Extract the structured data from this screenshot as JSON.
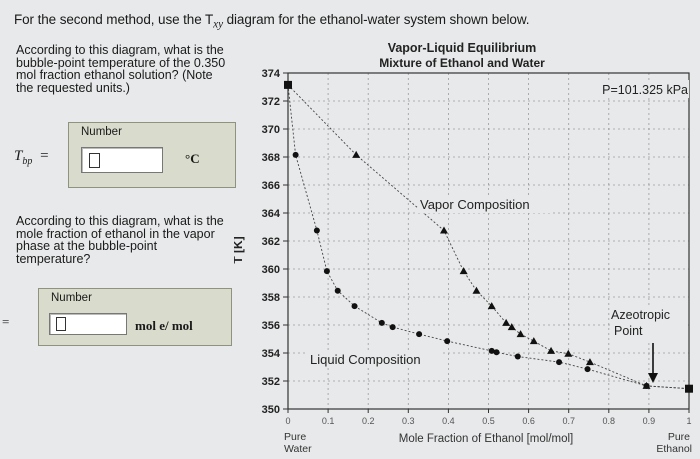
{
  "intro": {
    "pre": "For the second method, use the T",
    "sub": "xy",
    "post": " diagram for the ethanol-water system shown below."
  },
  "question1": {
    "text": "According to this diagram, what is the bubble-point temperature of the 0.350 mol fraction ethanol solution? (Note the requested units.)",
    "panel_label": "Number",
    "variable": "T",
    "variable_sub": "bp",
    "equals": "=",
    "value": "",
    "unit": "°C"
  },
  "question2": {
    "text": "According to this diagram, what is the mole fraction of ethanol in the vapor phase at the bubble-point temperature?",
    "panel_label": "Number",
    "equals": "=",
    "value": "",
    "unit": "mol e/ mol"
  },
  "chart_data": {
    "type": "line",
    "title": "Vapor-Liquid Equilibrium",
    "subtitle": "Mixture of Ethanol and Water",
    "xlabel": "Mole Fraction of Ethanol [mol/mol]",
    "ylabel": "T [K]",
    "xlim": [
      0,
      1
    ],
    "ylim": [
      350,
      374
    ],
    "yticks": [
      350,
      352,
      354,
      356,
      358,
      360,
      362,
      364,
      366,
      368,
      370,
      372,
      374
    ],
    "xticks": [
      "0",
      "0.1",
      "0.2",
      "0.3",
      "0.4",
      "0.5",
      "0.6",
      "0.7",
      "0.8",
      "0.9",
      "1"
    ],
    "x_end_labels": {
      "left_top": "Pure",
      "left_bottom": "Water",
      "right_top": "Pure",
      "right_bottom": "Ethanol"
    },
    "pressure_label": "P=101.325 kPa",
    "annotations": {
      "vapor": "Vapor Composition",
      "liquid": "Liquid Composition",
      "azeo_line1": "Azeotropic",
      "azeo_line2": "Point"
    },
    "grid": true,
    "series": [
      {
        "name": "Liquid Composition",
        "marker": "circle",
        "x": [
          0.0,
          0.019,
          0.072,
          0.097,
          0.124,
          0.166,
          0.234,
          0.261,
          0.327,
          0.397,
          0.508,
          0.52,
          0.573,
          0.676,
          0.747,
          0.894,
          1.0
        ],
        "y": [
          373.15,
          368.15,
          362.75,
          359.85,
          358.45,
          357.35,
          356.15,
          355.85,
          355.35,
          354.85,
          354.15,
          354.05,
          353.75,
          353.35,
          352.85,
          351.65,
          351.45
        ]
      },
      {
        "name": "Vapor Composition",
        "marker": "triangle",
        "x": [
          0.0,
          0.17,
          0.389,
          0.438,
          0.47,
          0.508,
          0.544,
          0.558,
          0.58,
          0.613,
          0.656,
          0.699,
          0.753,
          0.894,
          1.0
        ],
        "y": [
          373.15,
          368.15,
          362.75,
          359.85,
          358.45,
          357.35,
          356.15,
          355.85,
          355.35,
          354.85,
          354.15,
          353.95,
          353.35,
          351.65,
          351.45
        ]
      }
    ]
  }
}
